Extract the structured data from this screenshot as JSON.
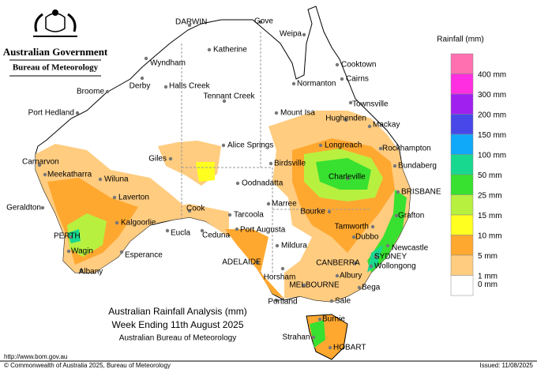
{
  "header": {
    "government": "Australian Government",
    "bureau": "Bureau of Meteorology"
  },
  "title": {
    "line1": "Australian Rainfall Analysis (mm)",
    "line2": "Week Ending 11th August 2025",
    "line3": "Australian Bureau of Meteorology"
  },
  "legend": {
    "title": "Rainfall (mm)",
    "bins": [
      {
        "label": "400 mm",
        "color": "#ff70b0"
      },
      {
        "label": "300 mm",
        "color": "#ff2ee0"
      },
      {
        "label": "200 mm",
        "color": "#a020f0"
      },
      {
        "label": "150 mm",
        "color": "#4848e8"
      },
      {
        "label": "100 mm",
        "color": "#10a8f8"
      },
      {
        "label": "50 mm",
        "color": "#18d890"
      },
      {
        "label": "25 mm",
        "color": "#38e030"
      },
      {
        "label": "15 mm",
        "color": "#b8f040"
      },
      {
        "label": "10 mm",
        "color": "#ffff20"
      },
      {
        "label": "5 mm",
        "color": "#ffa830"
      },
      {
        "label": "1 mm",
        "color": "#ffcc80"
      },
      {
        "label": "0 mm",
        "color": "#ffffff"
      }
    ]
  },
  "places": [
    "DARWIN",
    "Gove",
    "Weipa",
    "Katherine",
    "Wyndham",
    "Cooktown",
    "Broome",
    "Derby",
    "Halls Creek",
    "Normanton",
    "Cairns",
    "Tennant Creek",
    "Port Hedland",
    "Mount Isa",
    "Townsville",
    "Hughenden",
    "Mackay",
    "Alice Springs",
    "Longreach",
    "Rockhampton",
    "Carnarvon",
    "Giles",
    "Birdsville",
    "Bundaberg",
    "Meekatharra",
    "Wiluna",
    "Charleville",
    "Oodnadatta",
    "BRISBANE",
    "Laverton",
    "Geraldton",
    "Marree",
    "Bourke",
    "Grafton",
    "Cook",
    "Tarcoola",
    "Kalgoorlie",
    "Tamworth",
    "Port Augusta",
    "PERTH",
    "Eucla",
    "Ceduna",
    "Dubbo",
    "Mildura",
    "Newcastle",
    "Wagin",
    "Esperance",
    "SYDNEY",
    "CANBERRA",
    "ADELAIDE",
    "Wollongong",
    "Albany",
    "Horsham",
    "Albury",
    "MELBOURNE",
    "Bega",
    "Portland",
    "Sale",
    "Burnie",
    "Strahan",
    "HOBART"
  ],
  "footer": {
    "url": "http://www.bom.gov.au",
    "copyright": "© Commonwealth of Australia 2025, Bureau of Meteorology",
    "issued": "Issued: 11/08/2025"
  }
}
